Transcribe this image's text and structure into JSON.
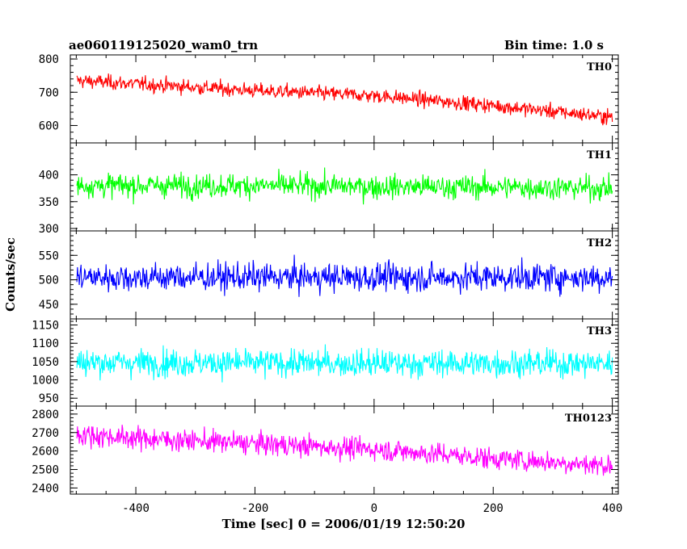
{
  "chart_data": {
    "type": "line",
    "title": "ae060119125020_wam0_trn",
    "subtitle": "Bin time: 1.0 s",
    "xlabel": "Time [sec] 0 = 2006/01/19 12:50:20",
    "ylabel": "Counts/sec",
    "xlim": [
      -510,
      410
    ],
    "data_x_range": [
      -499,
      400
    ],
    "xticks": [
      -400,
      -200,
      0,
      200,
      400
    ],
    "grid": false,
    "panels": [
      {
        "name": "TH0",
        "color": "#ff0000",
        "ylim": [
          555,
          805
        ],
        "yticks": [
          600,
          700,
          800
        ],
        "trend": {
          "x": [
            -499,
            -400,
            -200,
            0,
            200,
            400
          ],
          "y": [
            735,
            725,
            705,
            690,
            660,
            625
          ]
        },
        "noise_range": [
          40,
          60
        ]
      },
      {
        "name": "TH1",
        "color": "#00ff00",
        "ylim": [
          300,
          455
        ],
        "yticks": [
          300,
          350,
          400
        ],
        "trend": {
          "x": [
            -499,
            -200,
            0,
            200,
            400
          ],
          "y": [
            380,
            380,
            378,
            377,
            375
          ]
        },
        "noise_range": [
          30,
          70
        ]
      },
      {
        "name": "TH2",
        "color": "#0000ff",
        "ylim": [
          425,
          595
        ],
        "yticks": [
          450,
          500,
          550
        ],
        "trend": {
          "x": [
            -499,
            0,
            400
          ],
          "y": [
            505,
            505,
            505
          ]
        },
        "noise_range": [
          40,
          90
        ]
      },
      {
        "name": "TH3",
        "color": "#00ffff",
        "ylim": [
          935,
          1160
        ],
        "yticks": [
          950,
          1000,
          1050,
          1100,
          1150
        ],
        "trend": {
          "x": [
            -499,
            0,
            400
          ],
          "y": [
            1048,
            1045,
            1045
          ]
        },
        "noise_range": [
          60,
          110
        ]
      },
      {
        "name": "TH0123",
        "color": "#ff00ff",
        "ylim": [
          2380,
          2830
        ],
        "yticks": [
          2400,
          2500,
          2600,
          2700,
          2800
        ],
        "trend": {
          "x": [
            -499,
            -400,
            -200,
            0,
            200,
            400
          ],
          "y": [
            2690,
            2670,
            2640,
            2610,
            2560,
            2520
          ]
        },
        "noise_range": [
          100,
          170
        ]
      }
    ]
  }
}
